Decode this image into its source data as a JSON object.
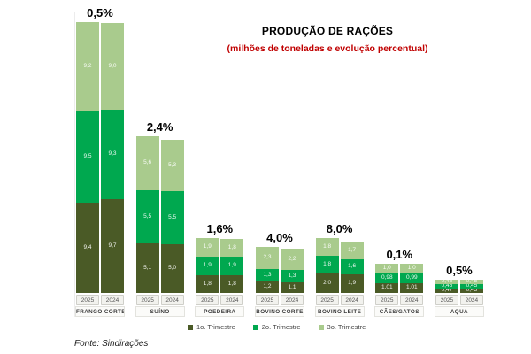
{
  "title": "PRODUÇÃO DE RAÇÕES",
  "subtitle": "(milhões de toneladas e evolução percentual)",
  "source": "Fonte: Sindirações",
  "colors": {
    "trimestre1": "#4a5a26",
    "trimestre2": "#00a84f",
    "trimestre3": "#a9cb8d",
    "subtitle": "#c00000",
    "percent_label": "#000000"
  },
  "legend": [
    "1o. Trimestre",
    "2o. Trimestre",
    "3o. Trimestre"
  ],
  "chart_data": {
    "type": "bar",
    "stacked": true,
    "title": "PRODUÇÃO DE RAÇÕES",
    "subtitle": "(milhões de toneladas e evolução percentual)",
    "ylabel": "milhões de toneladas",
    "ylim": [
      0,
      30
    ],
    "grid": false,
    "legend_position": "bottom",
    "years": [
      "2025",
      "2024"
    ],
    "series_names": [
      "1o. Trimestre",
      "2o. Trimestre",
      "3o. Trimestre"
    ],
    "groups": [
      {
        "category": "FRANGO CORTE",
        "pct": "0,5%",
        "values": {
          "2025": [
            "9,4",
            "9,5",
            "9,2"
          ],
          "2024": [
            "9,7",
            "9,3",
            "9,0"
          ]
        }
      },
      {
        "category": "SUÍNO",
        "pct": "2,4%",
        "values": {
          "2025": [
            "5,1",
            "5,5",
            "5,6"
          ],
          "2024": [
            "5,0",
            "5,5",
            "5,3"
          ]
        }
      },
      {
        "category": "POEDEIRA",
        "pct": "1,6%",
        "values": {
          "2025": [
            "1,8",
            "1,9",
            "1,9"
          ],
          "2024": [
            "1,8",
            "1,9",
            "1,8"
          ]
        }
      },
      {
        "category": "BOVINO CORTE",
        "pct": "4,0%",
        "values": {
          "2025": [
            "1,2",
            "1,3",
            "2,3"
          ],
          "2024": [
            "1,1",
            "1,3",
            "2,2"
          ]
        }
      },
      {
        "category": "BOVINO LEITE",
        "pct": "8,0%",
        "values": {
          "2025": [
            "2,0",
            "1,8",
            "1,8"
          ],
          "2024": [
            "1,9",
            "1,6",
            "1,7"
          ]
        }
      },
      {
        "category": "CÃES/GATOS",
        "pct": "0,1%",
        "values": {
          "2025": [
            "1,01",
            "0,98",
            "1,0"
          ],
          "2024": [
            "1,01",
            "0,99",
            "1,0"
          ]
        }
      },
      {
        "category": "AQUA",
        "pct": "0,5%",
        "values": {
          "2025": [
            "0,47",
            "0,45",
            "0,45"
          ],
          "2024": [
            "0,45",
            "0,45",
            "0,45"
          ]
        }
      }
    ]
  }
}
